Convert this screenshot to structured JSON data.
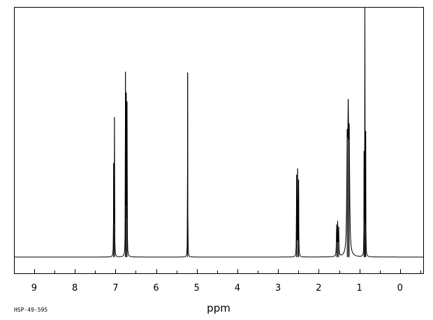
{
  "chart_data": {
    "type": "line",
    "title": "",
    "xlabel": "ppm",
    "ylabel": "",
    "xlim": [
      9.48,
      -0.57
    ],
    "ylim": [
      -0.065,
      1.0
    ],
    "x_reversed": true,
    "grid": false,
    "legend": "none",
    "tick_labels": [
      "9",
      "8",
      "7",
      "6",
      "5",
      "4",
      "3",
      "2",
      "1",
      "0"
    ],
    "tick_values": [
      9,
      8,
      7,
      6,
      5,
      4,
      3,
      2,
      1,
      0
    ],
    "minor_tick_step": 0.5,
    "baseline": 0,
    "series": [
      {
        "line_color": "#000000",
        "peaks": [
          {
            "x": 7.045,
            "y": 0.36,
            "w": 0.0035
          },
          {
            "x": 7.025,
            "y": 0.55,
            "w": 0.0035
          },
          {
            "x": 6.755,
            "y": 0.72,
            "w": 0.0035
          },
          {
            "x": 6.735,
            "y": 0.62,
            "w": 0.0035
          },
          {
            "x": 6.715,
            "y": 0.6,
            "w": 0.0035
          },
          {
            "x": 5.225,
            "y": 0.74,
            "w": 0.003
          },
          {
            "x": 2.545,
            "y": 0.32,
            "w": 0.004
          },
          {
            "x": 2.52,
            "y": 0.34,
            "w": 0.004
          },
          {
            "x": 2.495,
            "y": 0.3,
            "w": 0.004
          },
          {
            "x": 1.56,
            "y": 0.12,
            "w": 0.006
          },
          {
            "x": 1.535,
            "y": 0.13,
            "w": 0.006
          },
          {
            "x": 1.51,
            "y": 0.11,
            "w": 0.006
          },
          {
            "x": 1.3,
            "y": 0.4,
            "w": 0.012
          },
          {
            "x": 1.275,
            "y": 0.48,
            "w": 0.012
          },
          {
            "x": 1.25,
            "y": 0.42,
            "w": 0.012
          },
          {
            "x": 0.885,
            "y": 0.4,
            "w": 0.003
          },
          {
            "x": 0.865,
            "y": 0.98,
            "w": 0.003
          },
          {
            "x": 0.845,
            "y": 0.48,
            "w": 0.003
          }
        ]
      }
    ]
  },
  "footer": {
    "sample_code": "HSP-49-595"
  }
}
